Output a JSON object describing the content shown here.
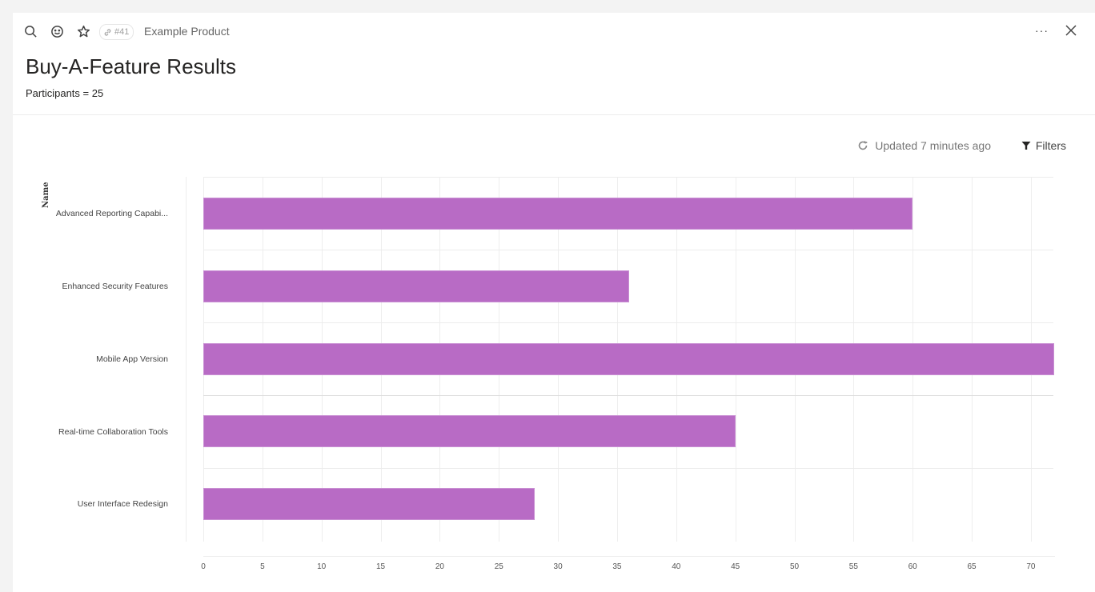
{
  "topbar": {
    "icons": [
      "search-icon",
      "emoji-icon",
      "star-icon"
    ],
    "badge": "#41",
    "product": "Example Product",
    "more": "···",
    "close": "close-icon"
  },
  "header": {
    "title": "Buy-A-Feature Results",
    "subtitle": "Participants = 25"
  },
  "toolbar": {
    "updated": "Updated 7 minutes ago",
    "filters": "Filters"
  },
  "colors": {
    "bar": "#b86bc5"
  },
  "chart_data": {
    "type": "bar",
    "orientation": "horizontal",
    "title": "",
    "ylabel": "Name",
    "xlabel": "",
    "categories": [
      "Advanced Reporting Capabi...",
      "Enhanced Security Features",
      "Mobile App Version",
      "Real-time Collaboration Tools",
      "User Interface Redesign"
    ],
    "values": [
      60,
      36,
      72,
      45,
      28
    ],
    "xlim": [
      0,
      72
    ],
    "x_ticks": [
      "0",
      "5",
      "10",
      "15",
      "20",
      "25",
      "30",
      "35",
      "40",
      "45",
      "50",
      "55",
      "60",
      "65",
      "70"
    ],
    "grid": true,
    "legend": "none",
    "color": "#b86bc5"
  }
}
